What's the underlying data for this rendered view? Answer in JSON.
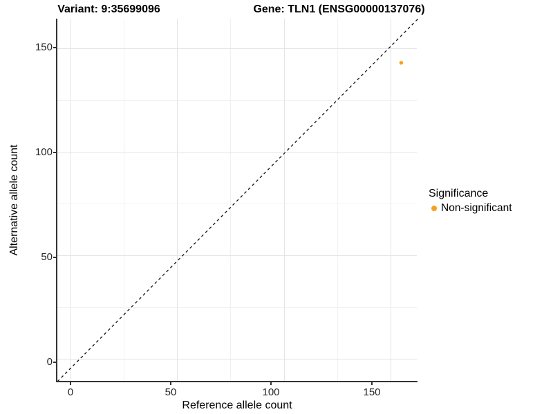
{
  "figure": {
    "titles": {
      "variant": "Variant: 9:35699096",
      "gene": "Gene: TLN1 (ENSG00000137076)"
    }
  },
  "chart_data": {
    "type": "scatter",
    "title": "Variant: 9:35699096 — Gene: TLN1 (ENSG00000137076)",
    "xlabel": "Reference allele count",
    "ylabel": "Alternative allele count",
    "x_tick_labels": [
      "0",
      "50",
      "100",
      "150"
    ],
    "y_tick_labels": [
      "150",
      "100",
      "50",
      "0"
    ],
    "xlim": [
      -6,
      162
    ],
    "ylim": [
      -11,
      164
    ],
    "grid": "major and minor light-gray gridlines every 25 units",
    "reference_line": {
      "kind": "identity y=x",
      "style": "dashed",
      "color": "#111111"
    },
    "series": [
      {
        "name": "Non-significant",
        "color": "#F8A01E",
        "points": [
          {
            "x": 155,
            "y": 143
          }
        ]
      }
    ],
    "legend": {
      "title": "Significance",
      "position": "right"
    }
  }
}
